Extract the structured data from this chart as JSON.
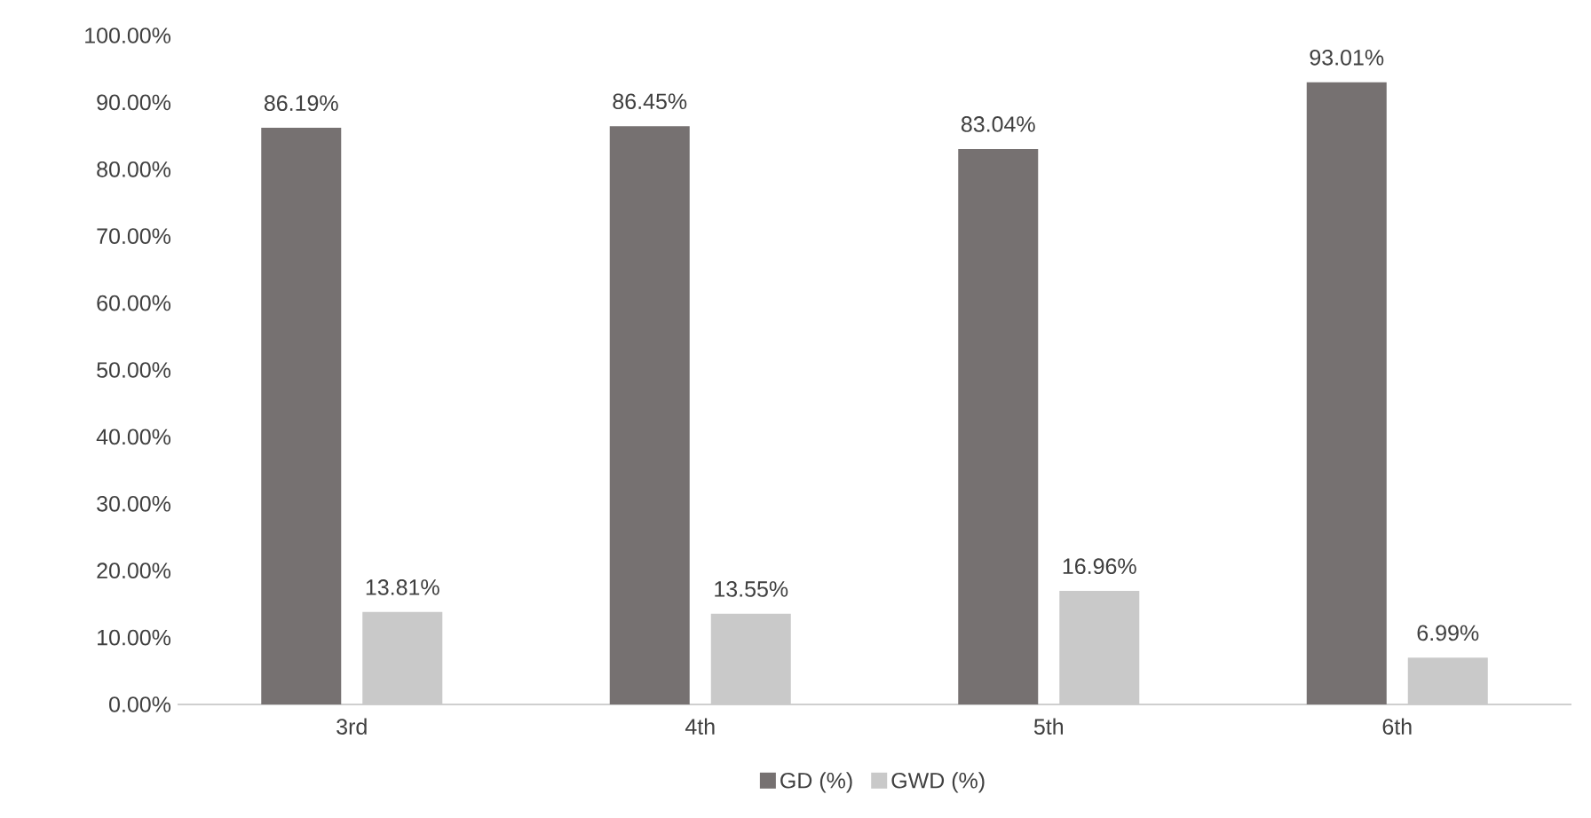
{
  "chart_data": {
    "type": "bar",
    "categories": [
      "3rd",
      "4th",
      "5th",
      "6th"
    ],
    "series": [
      {
        "name": "GD (%)",
        "color": "#767171",
        "values": [
          86.19,
          86.45,
          83.04,
          93.01
        ],
        "value_labels": [
          "86.19%",
          "86.45%",
          "83.04%",
          "93.01%"
        ]
      },
      {
        "name": "GWD (%)",
        "color": "#c9c9c9",
        "values": [
          13.81,
          13.55,
          16.96,
          6.99
        ],
        "value_labels": [
          "13.81%",
          "13.55%",
          "16.96%",
          "6.99%"
        ]
      }
    ],
    "ylim": [
      0,
      100
    ],
    "yticks": [
      {
        "value": 0,
        "label": "0.00%"
      },
      {
        "value": 10,
        "label": "10.00%"
      },
      {
        "value": 20,
        "label": "20.00%"
      },
      {
        "value": 30,
        "label": "30.00%"
      },
      {
        "value": 40,
        "label": "40.00%"
      },
      {
        "value": 50,
        "label": "50.00%"
      },
      {
        "value": 60,
        "label": "60.00%"
      },
      {
        "value": 70,
        "label": "70.00%"
      },
      {
        "value": 80,
        "label": "80.00%"
      },
      {
        "value": 90,
        "label": "90.00%"
      },
      {
        "value": 100,
        "label": "100.00%"
      }
    ],
    "grid": false,
    "legend": "bottom"
  }
}
